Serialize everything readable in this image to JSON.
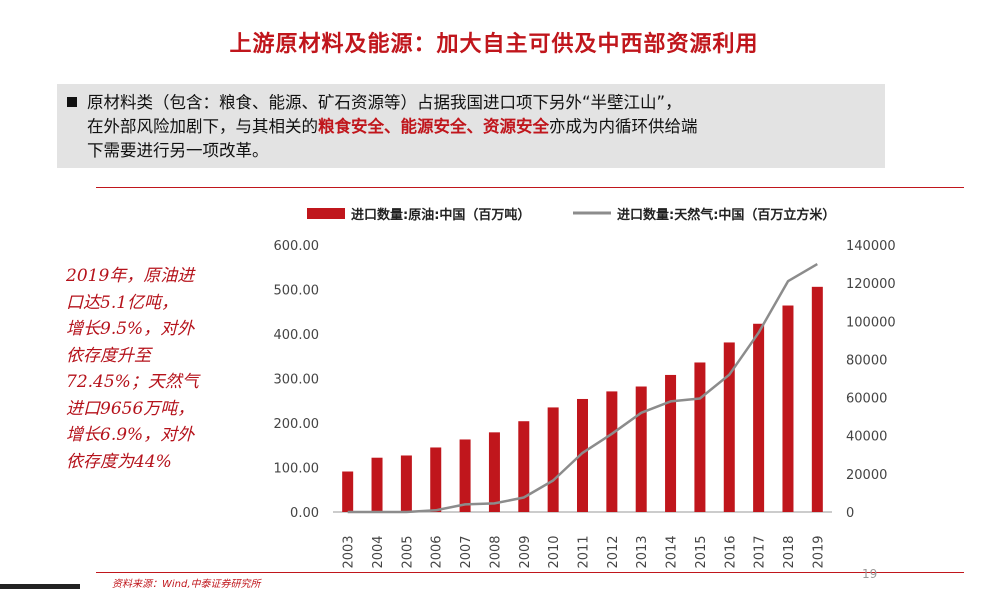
{
  "title": "上游原材料及能源：加大自主可供及中西部资源利用",
  "bullet": {
    "line1": "原材料类（包含：粮食、能源、矿石资源等）占据我国进口项下另外“半壁江山”，",
    "line2_pre": "在外部风险加剧下，与其相关的",
    "line2_hl": "粮食安全、能源安全、资源安全",
    "line2_post": "亦成为内循环供给端",
    "line3": "下需要进行另一项改革。"
  },
  "note": {
    "lines": [
      "2019年，原油进",
      "口达5.1亿吨，",
      "增长9.5%，对外",
      "依存度升至",
      "72.45%；天然气",
      "进口9656万吨，",
      "增长6.9%，对外",
      "依存度为44%"
    ]
  },
  "source": "资料来源：Wind,中泰证券研究所",
  "page_number": "19",
  "colors": {
    "accent": "#c0161c",
    "bar": "#c0161c",
    "line": "#8c8c8c"
  },
  "chart_data": {
    "type": "bar",
    "categories": [
      "2003",
      "2004",
      "2005",
      "2006",
      "2007",
      "2008",
      "2009",
      "2010",
      "2011",
      "2012",
      "2013",
      "2014",
      "2015",
      "2016",
      "2017",
      "2018",
      "2019"
    ],
    "series": [
      {
        "name": "进口数量:原油:中国（百万吨）",
        "type": "bar",
        "axis": "left",
        "values": [
          91,
          122,
          127,
          145,
          163,
          179,
          204,
          235,
          254,
          271,
          282,
          308,
          336,
          381,
          423,
          464,
          506
        ]
      },
      {
        "name": "进口数量:天然气:中国（百万立方米）",
        "type": "line",
        "axis": "right",
        "values": [
          0,
          0,
          0,
          900,
          4000,
          4500,
          7600,
          16500,
          31000,
          41000,
          52000,
          58000,
          59500,
          72000,
          94000,
          121000,
          130000
        ]
      }
    ],
    "left_axis": {
      "ylim": [
        0,
        600
      ],
      "ticks": [
        "0.00",
        "100.00",
        "200.00",
        "300.00",
        "400.00",
        "500.00",
        "600.00"
      ]
    },
    "right_axis": {
      "ylim": [
        0,
        140000
      ],
      "ticks": [
        "0",
        "20000",
        "40000",
        "60000",
        "80000",
        "100000",
        "120000",
        "140000"
      ]
    },
    "legend": {
      "position": "top"
    }
  }
}
